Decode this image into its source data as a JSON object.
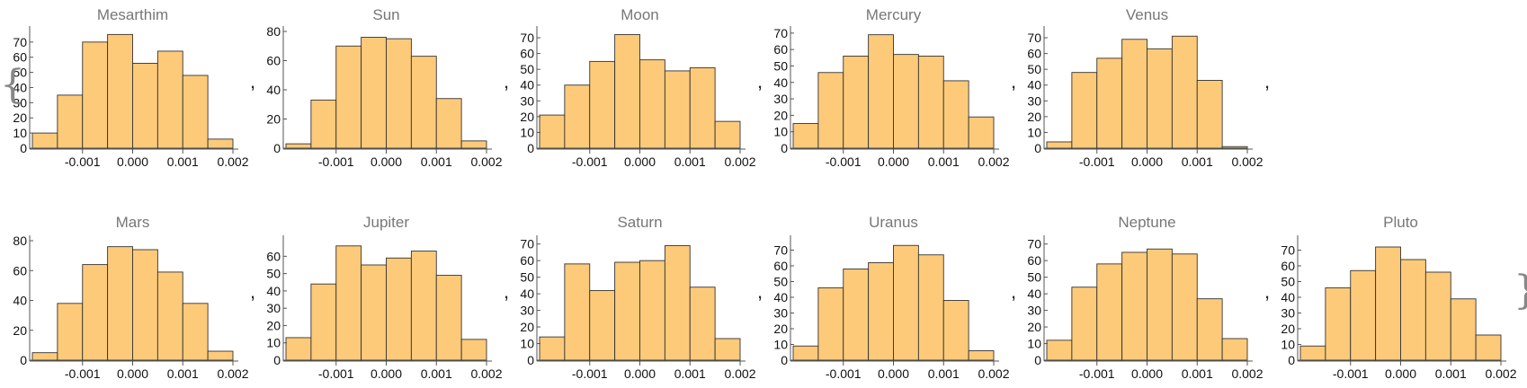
{
  "list_open": "{",
  "list_close": "}",
  "separator": ",",
  "bar_color": "#fdca7a",
  "bar_stroke": "#333333",
  "title_color": "#777777",
  "chart_data": [
    {
      "type": "bar",
      "title": "Mesarthim",
      "bin_edges": [
        -0.002,
        -0.0015,
        -0.001,
        -0.0005,
        0,
        0.0005,
        0.001,
        0.0015,
        0.002
      ],
      "values": [
        10,
        35,
        70,
        75,
        56,
        64,
        48,
        6
      ],
      "xticks": [
        -0.001,
        0,
        0.001,
        0.002
      ],
      "xtick_labels": [
        "-0.001",
        "0.000",
        "0.001",
        "0.002"
      ],
      "yticks": [
        0,
        10,
        20,
        30,
        40,
        50,
        60,
        70
      ],
      "ylim": [
        0,
        77
      ]
    },
    {
      "type": "bar",
      "title": "Sun",
      "bin_edges": [
        -0.002,
        -0.0015,
        -0.001,
        -0.0005,
        0,
        0.0005,
        0.001,
        0.0015,
        0.002
      ],
      "values": [
        3,
        33,
        70,
        76,
        75,
        63,
        34,
        5
      ],
      "xticks": [
        -0.001,
        0,
        0.001,
        0.002
      ],
      "xtick_labels": [
        "-0.001",
        "0.000",
        "0.001",
        "0.002"
      ],
      "yticks": [
        0,
        20,
        40,
        60,
        80
      ],
      "ylim": [
        0,
        80
      ]
    },
    {
      "type": "bar",
      "title": "Moon",
      "bin_edges": [
        -0.002,
        -0.0015,
        -0.001,
        -0.0005,
        0,
        0.0005,
        0.001,
        0.0015,
        0.002
      ],
      "values": [
        21,
        40,
        55,
        72,
        56,
        49,
        51,
        17
      ],
      "xticks": [
        -0.001,
        0,
        0.001,
        0.002
      ],
      "xtick_labels": [
        "-0.001",
        "0.000",
        "0.001",
        "0.002"
      ],
      "yticks": [
        0,
        10,
        20,
        30,
        40,
        50,
        60,
        70
      ],
      "ylim": [
        0,
        74
      ]
    },
    {
      "type": "bar",
      "title": "Mercury",
      "bin_edges": [
        -0.002,
        -0.0015,
        -0.001,
        -0.0005,
        0,
        0.0005,
        0.001,
        0.0015,
        0.002
      ],
      "values": [
        15,
        46,
        56,
        69,
        57,
        56,
        41,
        19
      ],
      "xticks": [
        -0.001,
        0,
        0.001,
        0.002
      ],
      "xtick_labels": [
        "-0.001",
        "0.000",
        "0.001",
        "0.002"
      ],
      "yticks": [
        0,
        10,
        20,
        30,
        40,
        50,
        60,
        70
      ],
      "ylim": [
        0,
        71
      ]
    },
    {
      "type": "bar",
      "title": "Venus",
      "bin_edges": [
        -0.002,
        -0.0015,
        -0.001,
        -0.0005,
        0,
        0.0005,
        0.001,
        0.0015,
        0.002
      ],
      "values": [
        4,
        48,
        57,
        69,
        63,
        71,
        43,
        1
      ],
      "xticks": [
        -0.001,
        0,
        0.001,
        0.002
      ],
      "xtick_labels": [
        "-0.001",
        "0.000",
        "0.001",
        "0.002"
      ],
      "yticks": [
        0,
        10,
        20,
        30,
        40,
        50,
        60,
        70
      ],
      "ylim": [
        0,
        74
      ]
    },
    {
      "type": "bar",
      "title": "Mars",
      "bin_edges": [
        -0.002,
        -0.0015,
        -0.001,
        -0.0005,
        0,
        0.0005,
        0.001,
        0.0015,
        0.002
      ],
      "values": [
        5,
        38,
        64,
        76,
        74,
        59,
        38,
        6
      ],
      "xticks": [
        -0.001,
        0,
        0.001,
        0.002
      ],
      "xtick_labels": [
        "-0.001",
        "0.000",
        "0.001",
        "0.002"
      ],
      "yticks": [
        0,
        20,
        40,
        60,
        80
      ],
      "ylim": [
        0,
        80
      ]
    },
    {
      "type": "bar",
      "title": "Jupiter",
      "bin_edges": [
        -0.002,
        -0.0015,
        -0.001,
        -0.0005,
        0,
        0.0005,
        0.001,
        0.0015,
        0.002
      ],
      "values": [
        13,
        44,
        66,
        55,
        59,
        63,
        49,
        12
      ],
      "xticks": [
        -0.001,
        0,
        0.001,
        0.002
      ],
      "xtick_labels": [
        "-0.001",
        "0.000",
        "0.001",
        "0.002"
      ],
      "yticks": [
        0,
        10,
        20,
        30,
        40,
        50,
        60
      ],
      "ylim": [
        0,
        69
      ]
    },
    {
      "type": "bar",
      "title": "Saturn",
      "bin_edges": [
        -0.002,
        -0.0015,
        -0.001,
        -0.0005,
        0,
        0.0005,
        0.001,
        0.0015,
        0.002
      ],
      "values": [
        14,
        58,
        42,
        59,
        60,
        69,
        44,
        13
      ],
      "xticks": [
        -0.001,
        0,
        0.001,
        0.002
      ],
      "xtick_labels": [
        "-0.001",
        "0.000",
        "0.001",
        "0.002"
      ],
      "yticks": [
        0,
        10,
        20,
        30,
        40,
        50,
        60,
        70
      ],
      "ylim": [
        0,
        72
      ]
    },
    {
      "type": "bar",
      "title": "Uranus",
      "bin_edges": [
        -0.002,
        -0.0015,
        -0.001,
        -0.0005,
        0,
        0.0005,
        0.001,
        0.0015,
        0.002
      ],
      "values": [
        9,
        46,
        58,
        62,
        73,
        67,
        38,
        6
      ],
      "xticks": [
        -0.001,
        0,
        0.001,
        0.002
      ],
      "xtick_labels": [
        "-0.001",
        "0.000",
        "0.001",
        "0.002"
      ],
      "yticks": [
        0,
        10,
        20,
        30,
        40,
        50,
        60,
        70
      ],
      "ylim": [
        0,
        76
      ]
    },
    {
      "type": "bar",
      "title": "Neptune",
      "bin_edges": [
        -0.002,
        -0.0015,
        -0.001,
        -0.0005,
        0,
        0.0005,
        0.001,
        0.0015,
        0.002
      ],
      "values": [
        12,
        44,
        58,
        65,
        67,
        64,
        37,
        13
      ],
      "xticks": [
        -0.001,
        0,
        0.001,
        0.002
      ],
      "xtick_labels": [
        "-0.001",
        "0.000",
        "0.001",
        "0.002"
      ],
      "yticks": [
        0,
        10,
        20,
        30,
        40,
        50,
        60,
        70
      ],
      "ylim": [
        0,
        72
      ]
    },
    {
      "type": "bar",
      "title": "Pluto",
      "bin_edges": [
        -0.002,
        -0.0015,
        -0.001,
        -0.0005,
        0,
        0.0005,
        0.001,
        0.0015,
        0.002
      ],
      "values": [
        9,
        46,
        57,
        72,
        64,
        56,
        39,
        16
      ],
      "xticks": [
        -0.001,
        0,
        0.001,
        0.002
      ],
      "xtick_labels": [
        "-0.001",
        "0.000",
        "0.001",
        "0.002"
      ],
      "yticks": [
        0,
        10,
        20,
        30,
        40,
        50,
        60,
        70
      ],
      "ylim": [
        0,
        76
      ]
    }
  ]
}
